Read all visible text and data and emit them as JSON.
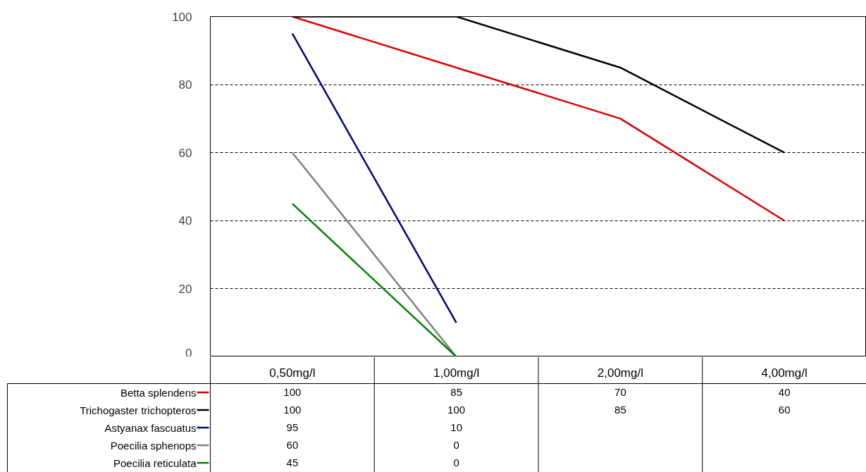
{
  "chart_data": {
    "type": "line",
    "categories": [
      "0,50mg/l",
      "1,00mg/l",
      "2,00mg/l",
      "4,00mg/l"
    ],
    "series": [
      {
        "name": "Betta splendens",
        "color": "#dd0000",
        "values": [
          100,
          85,
          70,
          40
        ]
      },
      {
        "name": "Trichogaster trichopteros",
        "color": "#000000",
        "values": [
          100,
          100,
          85,
          60
        ]
      },
      {
        "name": "Astyanax fascuatus",
        "color": "#000080",
        "values": [
          95,
          10,
          null,
          null
        ]
      },
      {
        "name": "Poecilia sphenops",
        "color": "#808080",
        "values": [
          60,
          0,
          null,
          null
        ]
      },
      {
        "name": "Poecilia reticulata",
        "color": "#008000",
        "values": [
          45,
          0,
          null,
          null
        ]
      }
    ],
    "ylim": [
      0,
      100
    ],
    "yticks": [
      0,
      20,
      40,
      60,
      80,
      100
    ],
    "grid": "y",
    "data_labels": true,
    "legend": "bottom left"
  }
}
